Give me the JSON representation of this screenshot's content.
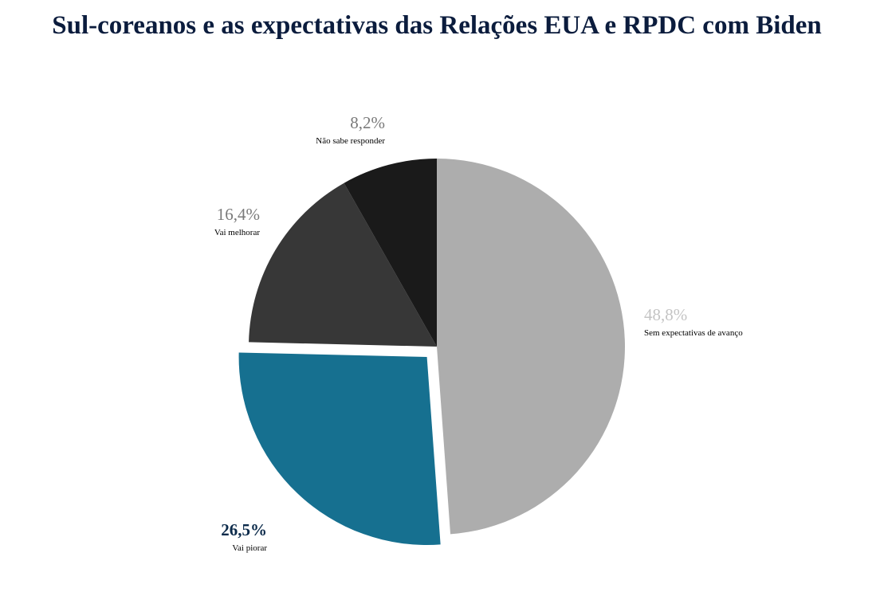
{
  "colors": {
    "title": "#0b1c3d",
    "highlight_label": "#0b2a4a"
  },
  "chart_data": {
    "type": "pie",
    "title": "Sul-coreanos e as expectativas das Relações EUA e RPDC com Biden",
    "start_angle_deg": 0,
    "direction": "clockwise",
    "exploded": "Vai piorar",
    "slices": [
      {
        "label": "Sem expectativas de avanço",
        "value": 48.8,
        "value_label": "48,8%",
        "color": "#adadad",
        "label_color": "#c4c4c4"
      },
      {
        "label": "Vai piorar",
        "value": 26.5,
        "value_label": "26,5%",
        "color": "#167090",
        "label_color": "#0b2a4a",
        "label_bold": true
      },
      {
        "label": "Vai melhorar",
        "value": 16.4,
        "value_label": "16,4%",
        "color": "#373737",
        "label_color": "#7a7a7a"
      },
      {
        "label": "Não sabe responder",
        "value": 8.2,
        "value_label": "8,2%",
        "color": "#1a1a1a",
        "label_color": "#7a7a7a"
      }
    ]
  }
}
